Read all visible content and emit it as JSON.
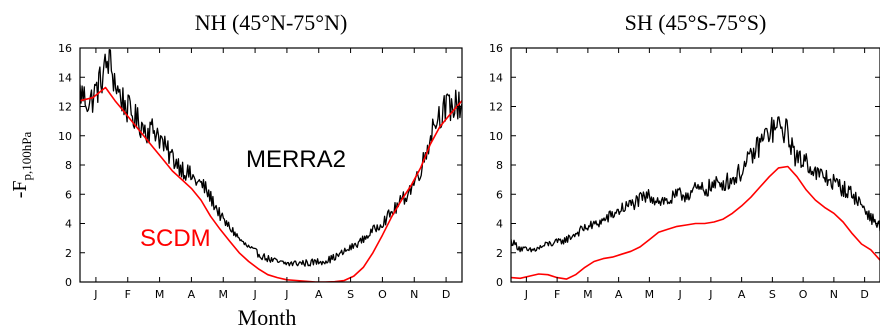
{
  "figure": {
    "xlabel": "Month",
    "ylabel_main": "-F",
    "ylabel_sub": "p,100hPa"
  },
  "chart_data": [
    {
      "type": "line",
      "title": "NH (45°N-75°N)",
      "xlabel": "Month",
      "ylabel": "-Fp,100hPa",
      "x_ticks": [
        "J",
        "F",
        "M",
        "A",
        "M",
        "J",
        "J",
        "A",
        "S",
        "O",
        "N",
        "D"
      ],
      "y_ticks": [
        0,
        2,
        4,
        6,
        8,
        10,
        12,
        14,
        16
      ],
      "ylim": [
        0,
        16
      ],
      "annotations": [
        {
          "text": "MERRA2",
          "color": "#000000"
        },
        {
          "text": "SCDM",
          "color": "#ff0000"
        }
      ],
      "series": [
        {
          "name": "MERRA2",
          "color": "#000000",
          "noisy": true,
          "points": [
            [
              0,
              13.0
            ],
            [
              0.3,
              12.2
            ],
            [
              0.6,
              13.5
            ],
            [
              0.9,
              15.2
            ],
            [
              1.2,
              13.0
            ],
            [
              1.5,
              11.8
            ],
            [
              1.8,
              11.0
            ],
            [
              2.1,
              10.4
            ],
            [
              2.4,
              10.4
            ],
            [
              2.7,
              9.0
            ],
            [
              3.0,
              8.3
            ],
            [
              3.3,
              7.6
            ],
            [
              3.6,
              7.0
            ],
            [
              3.9,
              6.5
            ],
            [
              4.2,
              5.4
            ],
            [
              4.5,
              4.2
            ],
            [
              4.8,
              3.5
            ],
            [
              5.1,
              2.7
            ],
            [
              5.4,
              2.2
            ],
            [
              5.7,
              1.8
            ],
            [
              6.0,
              1.5
            ],
            [
              6.3,
              1.3
            ],
            [
              6.6,
              1.25
            ],
            [
              6.9,
              1.3
            ],
            [
              7.2,
              1.3
            ],
            [
              7.5,
              1.4
            ],
            [
              7.8,
              1.5
            ],
            [
              8.1,
              1.8
            ],
            [
              8.4,
              2.2
            ],
            [
              8.7,
              2.6
            ],
            [
              9.0,
              3.1
            ],
            [
              9.3,
              3.7
            ],
            [
              9.6,
              4.3
            ],
            [
              9.9,
              5.0
            ],
            [
              10.2,
              5.8
            ],
            [
              10.5,
              6.8
            ],
            [
              10.8,
              8.3
            ],
            [
              11.1,
              10.8
            ],
            [
              11.4,
              11.8
            ],
            [
              11.7,
              12.0
            ],
            [
              12.0,
              12.2
            ]
          ]
        },
        {
          "name": "SCDM",
          "color": "#ff0000",
          "noisy": false,
          "points": [
            [
              0,
              12.4
            ],
            [
              0.4,
              12.6
            ],
            [
              0.8,
              13.3
            ],
            [
              1.1,
              12.4
            ],
            [
              1.4,
              11.6
            ],
            [
              1.7,
              10.8
            ],
            [
              2.0,
              10.0
            ],
            [
              2.3,
              9.2
            ],
            [
              2.6,
              8.4
            ],
            [
              2.9,
              7.6
            ],
            [
              3.2,
              7.0
            ],
            [
              3.5,
              6.4
            ],
            [
              3.8,
              5.6
            ],
            [
              4.1,
              4.5
            ],
            [
              4.4,
              3.6
            ],
            [
              4.7,
              2.8
            ],
            [
              5.0,
              2.0
            ],
            [
              5.3,
              1.4
            ],
            [
              5.6,
              0.9
            ],
            [
              5.9,
              0.5
            ],
            [
              6.2,
              0.3
            ],
            [
              6.5,
              0.15
            ],
            [
              6.8,
              0.1
            ],
            [
              7.1,
              0.05
            ],
            [
              7.4,
              0.0
            ],
            [
              7.7,
              0.0
            ],
            [
              8.0,
              0.02
            ],
            [
              8.3,
              0.1
            ],
            [
              8.6,
              0.4
            ],
            [
              8.9,
              1.0
            ],
            [
              9.2,
              2.0
            ],
            [
              9.5,
              3.2
            ],
            [
              9.8,
              4.5
            ],
            [
              10.1,
              5.6
            ],
            [
              10.4,
              6.6
            ],
            [
              10.7,
              7.8
            ],
            [
              11.0,
              9.4
            ],
            [
              11.3,
              10.6
            ],
            [
              11.6,
              11.4
            ],
            [
              12.0,
              12.4
            ]
          ]
        }
      ]
    },
    {
      "type": "line",
      "title": "SH (45°S-75°S)",
      "xlabel": "Month",
      "ylabel": "",
      "x_ticks": [
        "J",
        "F",
        "M",
        "A",
        "M",
        "J",
        "J",
        "A",
        "S",
        "O",
        "N",
        "D"
      ],
      "y_ticks": [
        0,
        2,
        4,
        6,
        8,
        10,
        12,
        14,
        16
      ],
      "ylim": [
        0,
        16
      ],
      "annotations": [],
      "series": [
        {
          "name": "MERRA2",
          "color": "#000000",
          "noisy": true,
          "points": [
            [
              0,
              2.8
            ],
            [
              0.3,
              2.3
            ],
            [
              0.6,
              2.1
            ],
            [
              0.9,
              2.3
            ],
            [
              1.2,
              2.6
            ],
            [
              1.5,
              2.7
            ],
            [
              1.8,
              2.9
            ],
            [
              2.1,
              3.3
            ],
            [
              2.4,
              3.7
            ],
            [
              2.7,
              3.9
            ],
            [
              3.0,
              4.2
            ],
            [
              3.3,
              4.6
            ],
            [
              3.6,
              5.0
            ],
            [
              3.9,
              5.3
            ],
            [
              4.2,
              5.6
            ],
            [
              4.5,
              5.9
            ],
            [
              4.8,
              5.6
            ],
            [
              5.1,
              5.5
            ],
            [
              5.4,
              5.9
            ],
            [
              5.7,
              6.0
            ],
            [
              6.0,
              6.3
            ],
            [
              6.3,
              6.3
            ],
            [
              6.6,
              6.6
            ],
            [
              6.9,
              6.8
            ],
            [
              7.2,
              7.0
            ],
            [
              7.5,
              7.6
            ],
            [
              7.8,
              8.5
            ],
            [
              8.1,
              9.5
            ],
            [
              8.4,
              10.3
            ],
            [
              8.7,
              10.6
            ],
            [
              9.0,
              10.2
            ],
            [
              9.3,
              8.3
            ],
            [
              9.6,
              8.4
            ],
            [
              9.9,
              7.4
            ],
            [
              10.2,
              7.2
            ],
            [
              10.5,
              6.8
            ],
            [
              10.8,
              6.4
            ],
            [
              11.1,
              6.0
            ],
            [
              11.4,
              5.3
            ],
            [
              11.7,
              4.4
            ],
            [
              12.0,
              3.8
            ]
          ]
        },
        {
          "name": "SCDM",
          "color": "#ff0000",
          "noisy": false,
          "points": [
            [
              0,
              0.3
            ],
            [
              0.3,
              0.25
            ],
            [
              0.6,
              0.4
            ],
            [
              0.9,
              0.55
            ],
            [
              1.2,
              0.5
            ],
            [
              1.5,
              0.3
            ],
            [
              1.8,
              0.2
            ],
            [
              2.1,
              0.5
            ],
            [
              2.4,
              1.0
            ],
            [
              2.7,
              1.4
            ],
            [
              3.0,
              1.6
            ],
            [
              3.3,
              1.7
            ],
            [
              3.6,
              1.9
            ],
            [
              3.9,
              2.1
            ],
            [
              4.2,
              2.4
            ],
            [
              4.5,
              2.9
            ],
            [
              4.8,
              3.4
            ],
            [
              5.1,
              3.6
            ],
            [
              5.4,
              3.8
            ],
            [
              5.7,
              3.9
            ],
            [
              6.0,
              4.0
            ],
            [
              6.3,
              4.0
            ],
            [
              6.6,
              4.1
            ],
            [
              6.9,
              4.3
            ],
            [
              7.2,
              4.7
            ],
            [
              7.5,
              5.2
            ],
            [
              7.8,
              5.8
            ],
            [
              8.1,
              6.5
            ],
            [
              8.4,
              7.2
            ],
            [
              8.7,
              7.8
            ],
            [
              9.0,
              7.9
            ],
            [
              9.3,
              7.2
            ],
            [
              9.6,
              6.3
            ],
            [
              9.9,
              5.6
            ],
            [
              10.2,
              5.1
            ],
            [
              10.5,
              4.7
            ],
            [
              10.8,
              4.1
            ],
            [
              11.1,
              3.3
            ],
            [
              11.4,
              2.6
            ],
            [
              11.7,
              2.2
            ],
            [
              12.0,
              1.5
            ]
          ]
        }
      ]
    }
  ]
}
